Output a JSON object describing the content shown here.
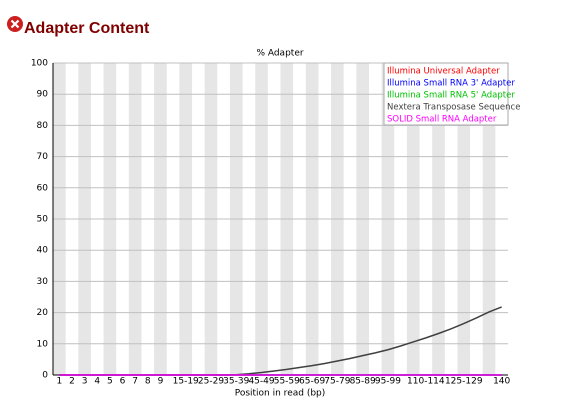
{
  "header": {
    "title": "Adapter Content"
  },
  "chart_data": {
    "type": "line",
    "title": "% Adapter",
    "xlabel": "Position in read (bp)",
    "categories": [
      "1",
      "2",
      "3",
      "4",
      "5",
      "6",
      "7",
      "8",
      "9",
      null,
      "15-19",
      null,
      "25-29",
      null,
      "35-39",
      null,
      "45-49",
      null,
      "55-59",
      null,
      "65-69",
      null,
      "75-79",
      null,
      "85-89",
      null,
      "95-99",
      null,
      null,
      "110-114",
      null,
      null,
      "125-129",
      null,
      null,
      "140"
    ],
    "ylim": [
      0,
      100
    ],
    "yticks": [
      0,
      10,
      20,
      30,
      40,
      50,
      60,
      70,
      80,
      90,
      100
    ],
    "legend": "top-right",
    "series": [
      {
        "name": "Illumina Universal Adapter",
        "color": "#ff0000",
        "values": [
          0,
          0,
          0,
          0,
          0,
          0,
          0,
          0,
          0,
          0,
          0,
          0,
          0,
          0,
          0,
          0,
          0,
          0,
          0,
          0,
          0,
          0,
          0,
          0,
          0,
          0,
          0,
          0,
          0,
          0,
          0,
          0,
          0,
          0,
          0,
          0
        ]
      },
      {
        "name": "Illumina Small RNA 3' Adapter",
        "color": "#0000ff",
        "values": [
          0,
          0,
          0,
          0,
          0,
          0,
          0,
          0,
          0,
          0,
          0,
          0,
          0,
          0,
          0,
          0,
          0,
          0,
          0,
          0,
          0,
          0,
          0,
          0,
          0,
          0,
          0,
          0,
          0,
          0,
          0,
          0,
          0,
          0,
          0,
          0
        ]
      },
      {
        "name": "Illumina Small RNA 5' Adapter",
        "color": "#00c000",
        "values": [
          0,
          0,
          0,
          0,
          0,
          0,
          0,
          0,
          0,
          0,
          0,
          0,
          0,
          0,
          0,
          0,
          0,
          0,
          0,
          0,
          0,
          0,
          0,
          0,
          0,
          0,
          0,
          0,
          0,
          0,
          0,
          0,
          0,
          0,
          0,
          0
        ]
      },
      {
        "name": "Nextera Transposase Sequence",
        "color": "#404040",
        "values": [
          0,
          0,
          0,
          0,
          0,
          0,
          0,
          0,
          0,
          0,
          0,
          0,
          0,
          0,
          0.1,
          0.4,
          0.8,
          1.3,
          1.8,
          2.4,
          3.0,
          3.7,
          4.5,
          5.3,
          6.2,
          7.1,
          8.1,
          9.3,
          10.6,
          11.9,
          13.3,
          14.8,
          16.5,
          18.3,
          20.2,
          21.8
        ]
      },
      {
        "name": "SOLID Small RNA Adapter",
        "color": "#ff00ff",
        "values": [
          0,
          0,
          0,
          0,
          0,
          0,
          0,
          0,
          0,
          0,
          0,
          0,
          0,
          0,
          0,
          0,
          0,
          0,
          0,
          0,
          0,
          0,
          0,
          0,
          0,
          0,
          0,
          0,
          0,
          0,
          0,
          0,
          0,
          0,
          0,
          0
        ]
      }
    ]
  }
}
